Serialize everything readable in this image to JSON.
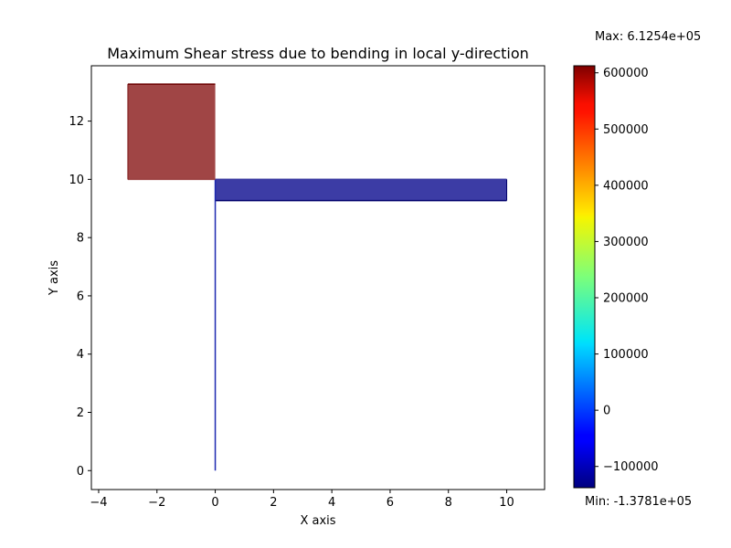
{
  "chart_data": {
    "type": "area",
    "title": "Maximum Shear stress due to bending in local y-direction",
    "xlabel": "X axis",
    "ylabel": "Y axis",
    "xlim": [
      -4.25,
      11.3
    ],
    "ylim": [
      -0.65,
      13.9
    ],
    "xticks": [
      -4,
      -2,
      0,
      2,
      4,
      6,
      8,
      10
    ],
    "yticks": [
      0,
      2,
      4,
      6,
      8,
      10,
      12
    ],
    "grid": false,
    "members": [
      {
        "from": [
          0,
          0
        ],
        "to": [
          0,
          10
        ],
        "stress_start": 0,
        "stress_end": 0,
        "fill_color": "#1c28b0"
      },
      {
        "from": [
          0,
          10
        ],
        "to": [
          10,
          10
        ],
        "stress_start": -137810,
        "stress_end": -137810,
        "fill_color": "#3c3ca5"
      },
      {
        "from": [
          -3,
          10
        ],
        "to": [
          0,
          10
        ],
        "stress_start": 612540,
        "stress_end": 612540,
        "fill_color": "#a04545"
      }
    ],
    "diagram_polygons": [
      {
        "points": [
          [
            -3,
            10
          ],
          [
            0,
            10
          ],
          [
            0,
            13.27
          ],
          [
            -3,
            13.27
          ]
        ],
        "fill": "#a04545",
        "edge": "#6b0000",
        "value": 612540
      },
      {
        "points": [
          [
            0,
            10
          ],
          [
            10,
            10
          ],
          [
            10,
            9.27
          ],
          [
            0,
            9.27
          ]
        ],
        "fill": "#3c3ca5",
        "edge": "#00006b",
        "value": -137810
      }
    ],
    "colorbar": {
      "colormap": "jet",
      "min": -137810,
      "max": 612540,
      "ticks": [
        -100000,
        0,
        100000,
        200000,
        300000,
        400000,
        500000,
        600000
      ],
      "max_label": "Max: 6.1254e+05",
      "min_label": "Min: -1.3781e+05"
    }
  }
}
